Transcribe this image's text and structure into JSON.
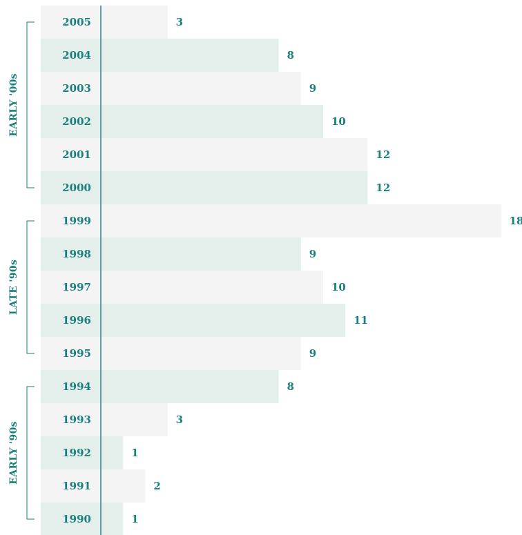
{
  "chart_data": {
    "type": "bar",
    "orientation": "horizontal",
    "categories": [
      "2005",
      "2004",
      "2003",
      "2002",
      "2001",
      "2000",
      "1999",
      "1998",
      "1997",
      "1996",
      "1995",
      "1994",
      "1993",
      "1992",
      "1991",
      "1990"
    ],
    "values": [
      3,
      8,
      9,
      10,
      12,
      12,
      18,
      9,
      10,
      11,
      9,
      8,
      3,
      1,
      2,
      1
    ],
    "groups": [
      {
        "label": "EARLY '00s",
        "categories": [
          "2005",
          "2004",
          "2003",
          "2002",
          "2001",
          "2000"
        ]
      },
      {
        "label": "LATE '90s",
        "categories": [
          "1999",
          "1998",
          "1997",
          "1996",
          "1995"
        ]
      },
      {
        "label": "EARLY '90s",
        "categories": [
          "1994",
          "1993",
          "1992",
          "1991",
          "1990"
        ]
      }
    ],
    "xlim": [
      0,
      18
    ],
    "grid": false,
    "colors": {
      "text": "#1a7f7a",
      "bar_light": "#f3f4f3",
      "bar_tint": "#e4eeea",
      "axis": "#1a7f7a"
    }
  }
}
